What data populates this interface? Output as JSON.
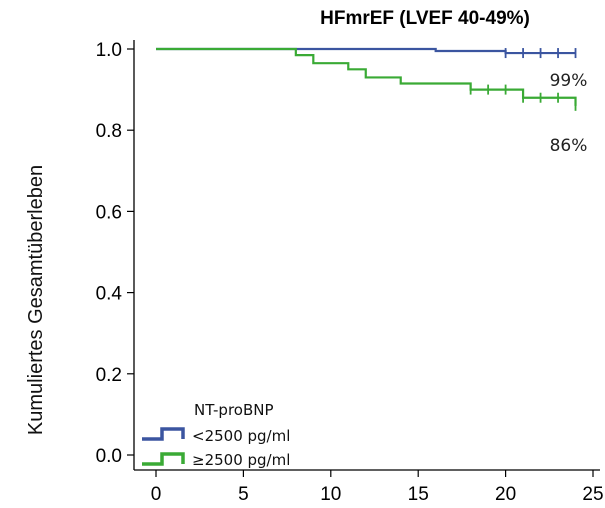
{
  "chart_data": {
    "type": "line",
    "step": true,
    "title": "HFmrEF (LVEF 40-49%)",
    "ylabel": "Kumuliertes Gesamtüberleben",
    "xlabel": "",
    "xlim": [
      0,
      25
    ],
    "ylim": [
      0.0,
      1.0
    ],
    "xticks": [
      0,
      5,
      10,
      15,
      20,
      25
    ],
    "yticks": [
      0.0,
      0.2,
      0.4,
      0.6,
      0.8,
      1.0
    ],
    "ytick_labels": [
      "0.0",
      "0.2",
      "0.4",
      "0.6",
      "0.8",
      "1.0"
    ],
    "grid": false,
    "legend_title": "NT-proBNP",
    "legend_position": "bottom-left",
    "series": [
      {
        "name": "<2500 pg/ml",
        "color": "#3b55a0",
        "steps": [
          [
            0,
            1.0
          ],
          [
            16,
            0.995
          ],
          [
            20,
            0.99
          ],
          [
            24,
            0.99
          ]
        ],
        "censored": [
          20,
          21,
          22,
          23,
          24
        ],
        "end_label": "99%"
      },
      {
        "name": "≥2500 pg/ml",
        "color": "#3aaa35",
        "steps": [
          [
            0,
            1.0
          ],
          [
            8,
            0.985
          ],
          [
            9,
            0.965
          ],
          [
            11,
            0.95
          ],
          [
            12,
            0.93
          ],
          [
            14,
            0.915
          ],
          [
            18,
            0.9
          ],
          [
            21,
            0.88
          ],
          [
            24,
            0.86
          ]
        ],
        "censored": [
          18,
          19,
          20,
          21,
          22,
          23,
          24
        ],
        "end_label": "86%"
      }
    ]
  }
}
